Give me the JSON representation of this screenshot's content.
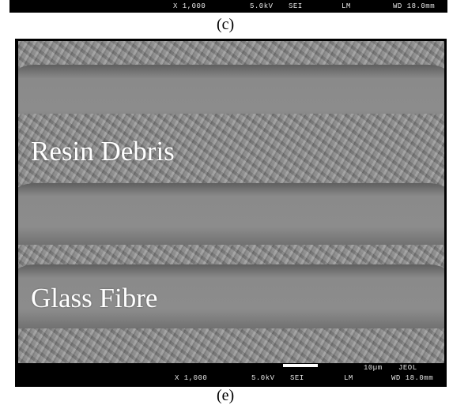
{
  "top_info_bar": {
    "magnification": "X 1,000",
    "voltage": "5.0kV",
    "detector": "SEI",
    "mode": "LM",
    "working_distance": "WD 18.0mm"
  },
  "panel_labels": {
    "current": "(c)",
    "next": "(e)"
  },
  "image_labels": {
    "resin": "Resin Debris",
    "glass": "Glass Fibre"
  },
  "bottom_info_bar": {
    "scale_label": "10µm",
    "manufacturer": "JEOL",
    "magnification": "X 1,000",
    "voltage": "5.0kV",
    "detector": "SEI",
    "mode": "LM",
    "working_distance": "WD 18.0mm"
  }
}
